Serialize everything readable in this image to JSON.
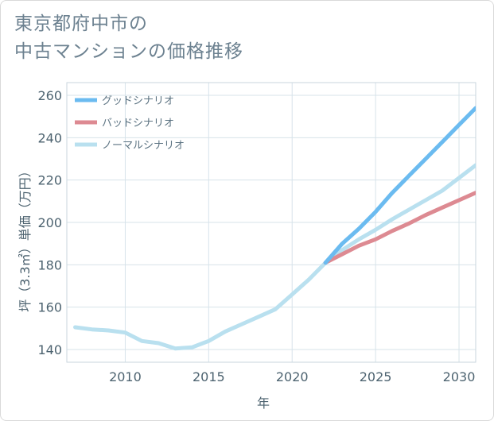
{
  "title_lines": [
    "東京都府中市の",
    "中古マンションの価格推移"
  ],
  "chart_data": {
    "type": "line",
    "title": "東京都府中市の中古マンションの価格推移",
    "xlabel": "年",
    "ylabel": "坪（3.3㎡）単価（万円）",
    "xlim": [
      2006.5,
      2031
    ],
    "ylim": [
      134,
      266
    ],
    "xticks": [
      2010,
      2015,
      2020,
      2025,
      2030
    ],
    "yticks": [
      140,
      160,
      180,
      200,
      220,
      240,
      260
    ],
    "grid": true,
    "legend_position": "top-left",
    "series": [
      {
        "name": "グッドシナリオ",
        "color": "#6bbbf0",
        "x": [
          2022,
          2023,
          2024,
          2025,
          2026,
          2027,
          2028,
          2029,
          2030,
          2031
        ],
        "y": [
          181,
          190,
          197,
          205,
          214,
          222,
          230,
          238,
          246,
          254
        ]
      },
      {
        "name": "バッドシナリオ",
        "color": "#dd8a92",
        "x": [
          2022,
          2023,
          2024,
          2025,
          2026,
          2027,
          2028,
          2029,
          2030,
          2031
        ],
        "y": [
          181,
          185,
          189,
          192,
          196,
          199.5,
          203.5,
          207,
          210.5,
          214
        ]
      },
      {
        "name": "ノーマルシナリオ",
        "color": "#b9e0ef",
        "x": [
          2007,
          2008,
          2009,
          2010,
          2011,
          2012,
          2013,
          2014,
          2015,
          2016,
          2017,
          2018,
          2019,
          2020,
          2021,
          2022,
          2023,
          2024,
          2025,
          2026,
          2027,
          2028,
          2029,
          2030,
          2031
        ],
        "y": [
          150.5,
          149.5,
          149,
          148,
          144,
          143,
          140.5,
          141,
          144,
          148.5,
          152,
          155.5,
          159,
          166,
          173,
          181,
          187,
          192,
          196.5,
          201.5,
          206,
          210.5,
          215,
          221,
          227
        ]
      }
    ]
  }
}
